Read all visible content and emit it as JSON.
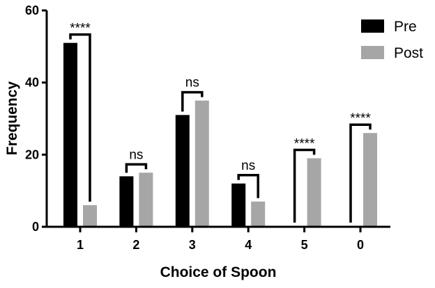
{
  "chart_data": {
    "type": "bar",
    "xlabel": "Choice of Spoon",
    "ylabel": "Frequency",
    "categories": [
      "1",
      "2",
      "3",
      "4",
      "5",
      "0"
    ],
    "series": [
      {
        "name": "Pre",
        "values": [
          51,
          14,
          31,
          12,
          0,
          0
        ],
        "color": "#000000"
      },
      {
        "name": "Post",
        "values": [
          6,
          15,
          35,
          7,
          19,
          26
        ],
        "color": "#a6a6a6"
      }
    ],
    "ylim": [
      0,
      60
    ],
    "yticks": [
      0,
      20,
      40,
      60
    ],
    "grid": false,
    "legend_position": "top-right",
    "significance": [
      {
        "category": "1",
        "label": "****"
      },
      {
        "category": "2",
        "label": "ns"
      },
      {
        "category": "3",
        "label": "ns"
      },
      {
        "category": "4",
        "label": "ns"
      },
      {
        "category": "5",
        "label": "****"
      },
      {
        "category": "0",
        "label": "****"
      }
    ]
  }
}
